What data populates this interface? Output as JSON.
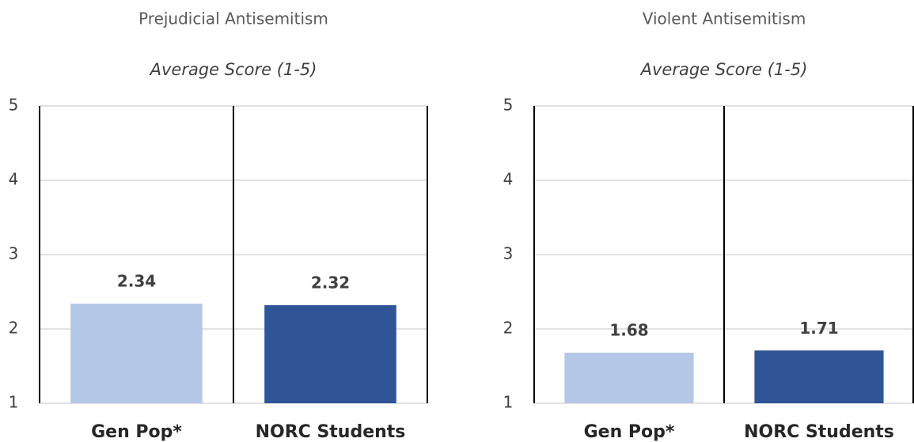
{
  "chart_data": [
    {
      "type": "bar",
      "title": "Prejudicial Antisemitism",
      "subtitle": "Average Score (1-5)",
      "categories": [
        "Gen Pop*",
        "NORC Students"
      ],
      "values": [
        2.34,
        2.32
      ],
      "colors": [
        "#b4c7e7",
        "#2f5597"
      ],
      "ylim": [
        1,
        5
      ],
      "yticks": [
        1,
        2,
        3,
        4,
        5
      ],
      "grid": true
    },
    {
      "type": "bar",
      "title": "Violent Antisemitism",
      "subtitle": "Average Score (1-5)",
      "categories": [
        "Gen Pop*",
        "NORC Students"
      ],
      "values": [
        1.68,
        1.71
      ],
      "colors": [
        "#b4c7e7",
        "#2f5597"
      ],
      "ylim": [
        1,
        5
      ],
      "yticks": [
        1,
        2,
        3,
        4,
        5
      ],
      "grid": true
    }
  ]
}
